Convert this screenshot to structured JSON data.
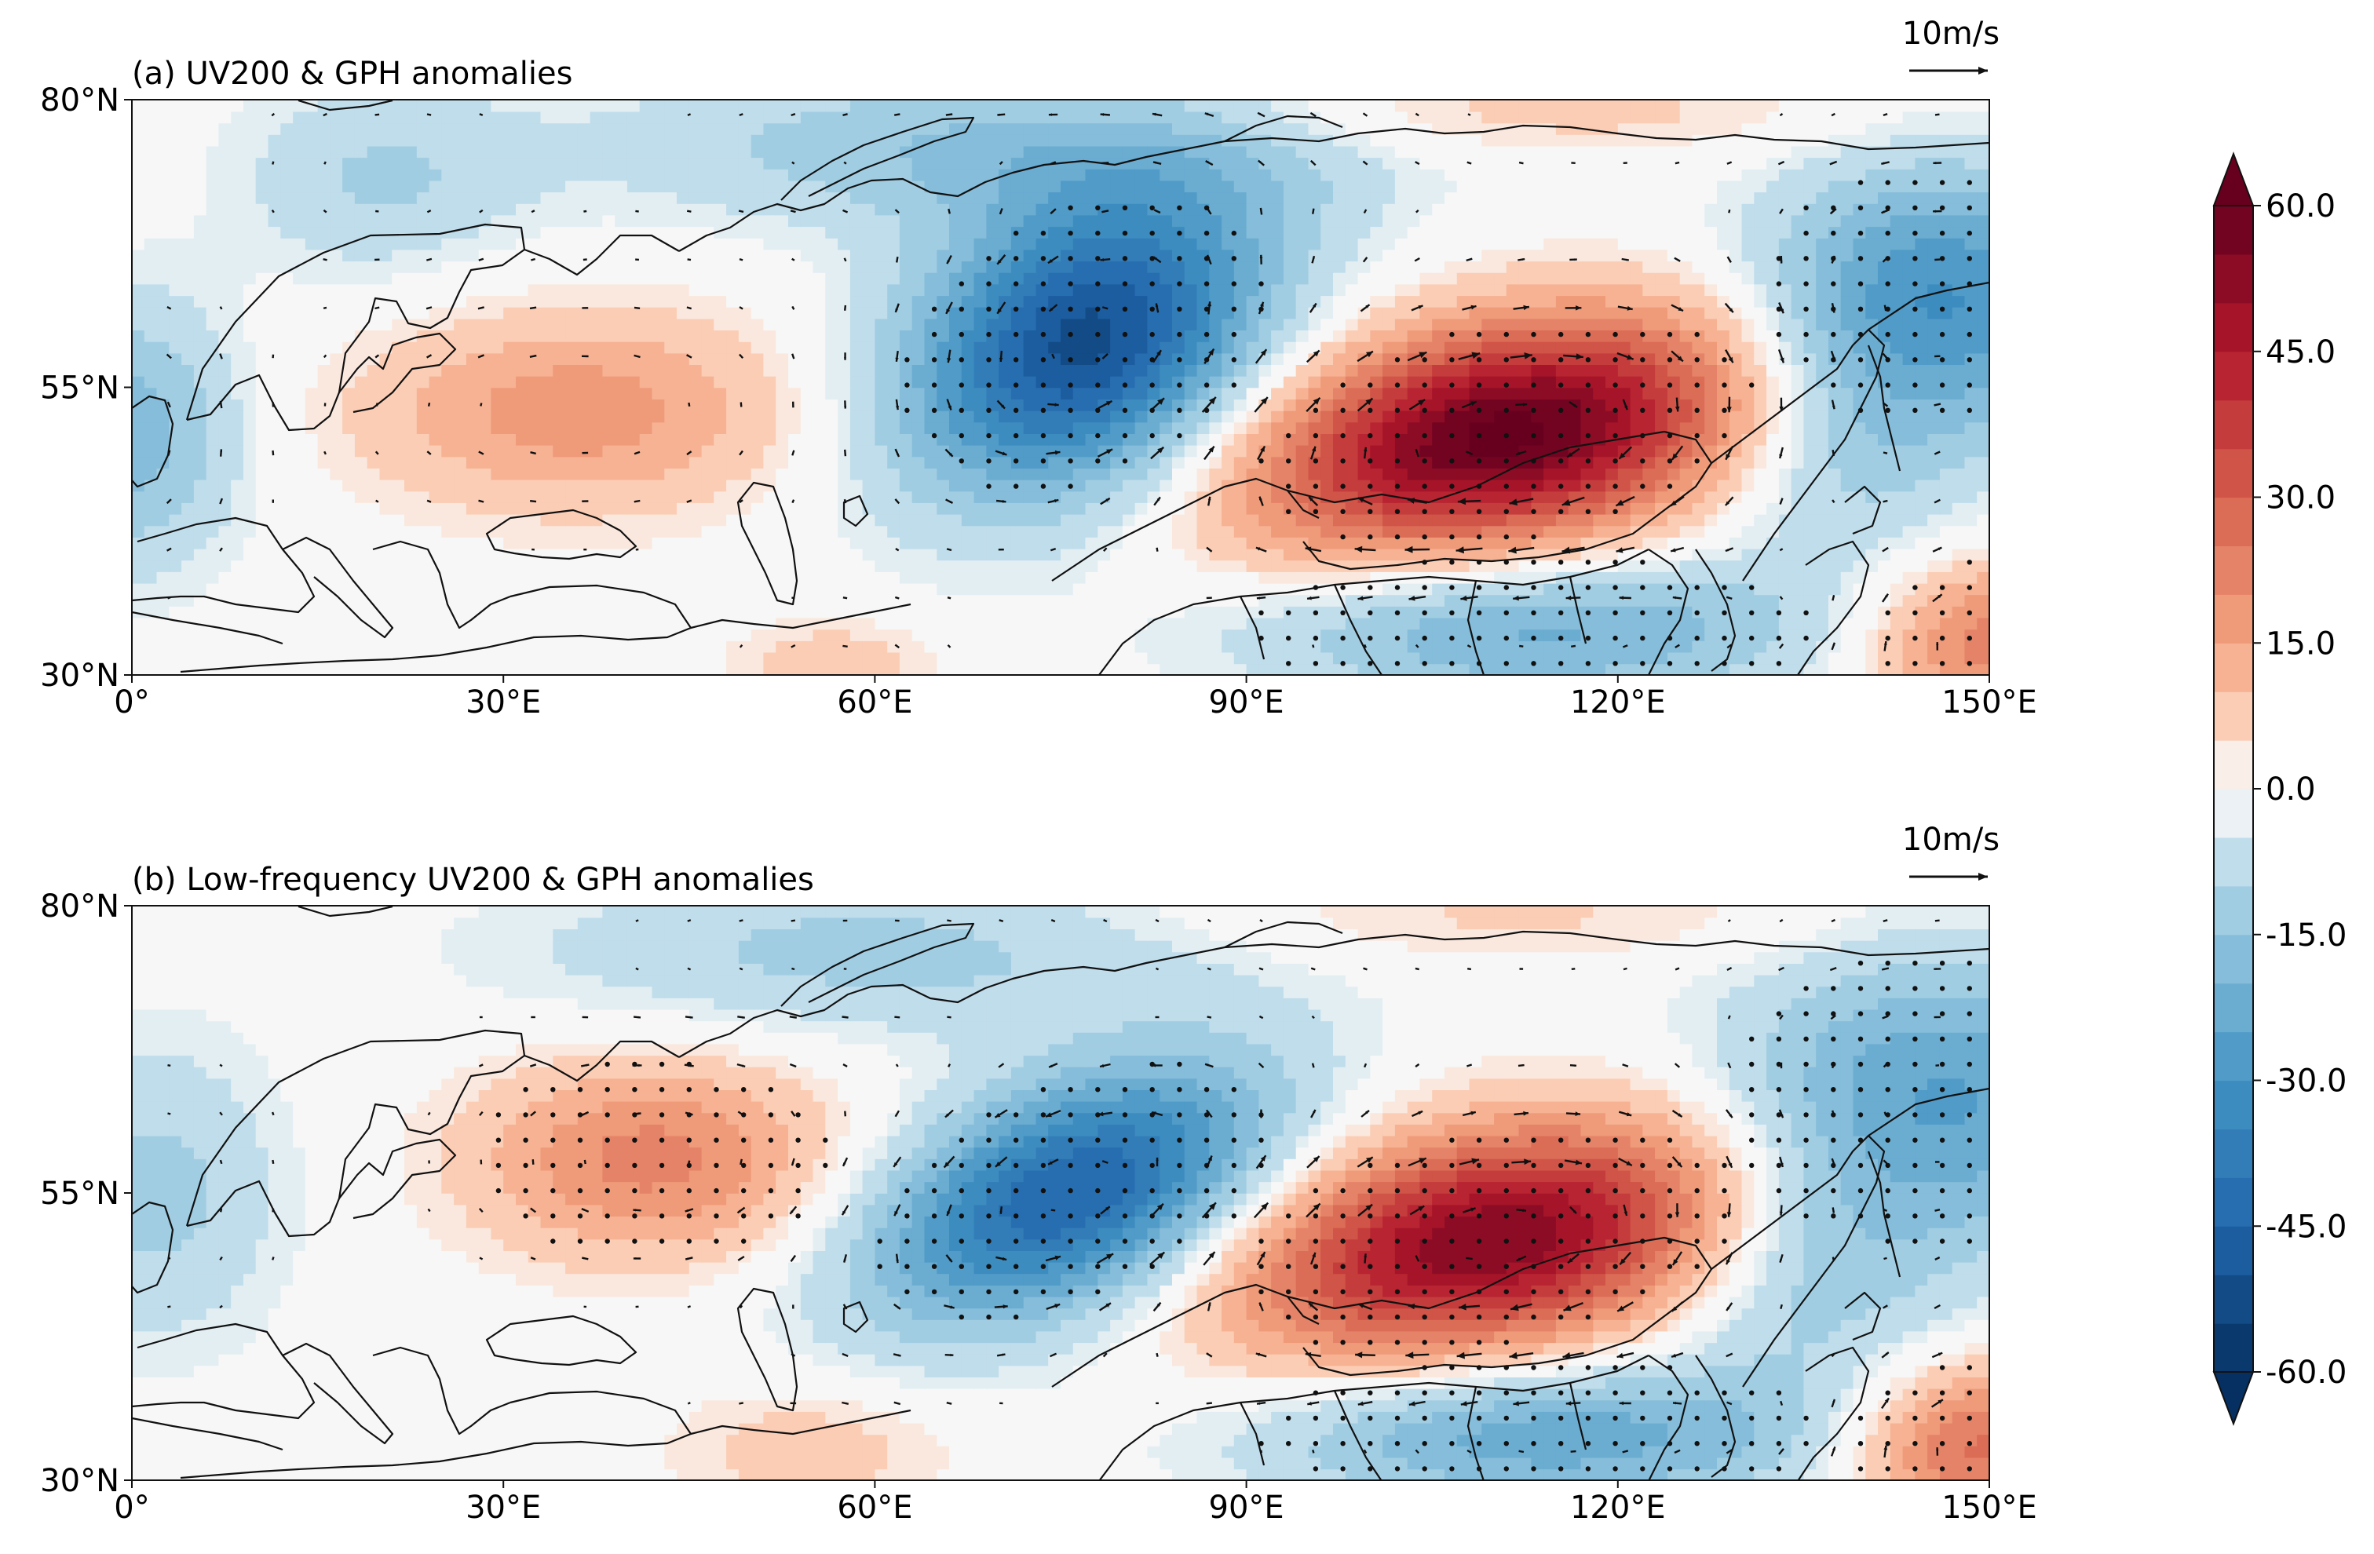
{
  "figure": {
    "colormap": "RdBu_r",
    "colorbar": {
      "min": -60,
      "max": 60,
      "step": 5,
      "extend": "both",
      "tick_values": [
        -60,
        -45,
        -30,
        -15,
        0,
        15,
        30,
        45,
        60
      ],
      "tick_labels": [
        "-60.0",
        "-45.0",
        "-30.0",
        "-15.0",
        "0.0",
        "15.0",
        "30.0",
        "45.0",
        "60.0"
      ]
    },
    "colors": {
      "dark_blue": "#08306b",
      "mid_blue": "#2166ac",
      "light_blue": "#92c5de",
      "white": "#f7f7f7",
      "light_red": "#f4a582",
      "mid_red": "#d6604d",
      "dark_red": "#67001f",
      "coast": "#111111",
      "arrow": "#111111"
    }
  },
  "chart_data": [
    {
      "type": "heatmap",
      "title": "(a) UV200 & GPH anomalies",
      "variable": "200-hPa geopotential height anomaly with wind vectors",
      "reference_vector": "10m/s",
      "reference_vector_ms": 10,
      "xlim": [
        0,
        150
      ],
      "ylim": [
        30,
        80
      ],
      "x_ticks": [
        0,
        30,
        60,
        90,
        120,
        150
      ],
      "x_tick_labels": [
        "0°",
        "30°E",
        "60°E",
        "90°E",
        "120°E",
        "150°E"
      ],
      "y_ticks": [
        30,
        55,
        80
      ],
      "y_tick_labels": [
        "30°N",
        "55°N",
        "80°N"
      ],
      "centers": [
        {
          "lon": 111,
          "lat": 51,
          "value": 62,
          "sx": 14,
          "sy": 6.5,
          "rot": 12,
          "stipple": true
        },
        {
          "lon": 77,
          "lat": 59,
          "value": -52,
          "sx": 11,
          "sy": 8,
          "rot": 35,
          "stipple": true
        },
        {
          "lon": 36,
          "lat": 53,
          "value": 18,
          "sx": 12,
          "sy": 6,
          "rot": 0,
          "stipple": false
        },
        {
          "lon": 0,
          "lat": 51,
          "value": -18,
          "sx": 6,
          "sy": 8,
          "rot": 0,
          "stipple": false
        },
        {
          "lon": 146,
          "lat": 63,
          "value": -30,
          "sx": 10,
          "sy": 8,
          "rot": 0,
          "stipple": true
        },
        {
          "lon": 150,
          "lat": 33,
          "value": 24,
          "sx": 7,
          "sy": 5,
          "rot": 0,
          "stipple": true
        },
        {
          "lon": 113,
          "lat": 34,
          "value": -22,
          "sx": 16,
          "sy": 4.5,
          "rot": 0,
          "stipple": true
        },
        {
          "lon": 70,
          "lat": 76,
          "value": -15,
          "sx": 22,
          "sy": 5,
          "rot": 0,
          "stipple": false
        },
        {
          "lon": 20,
          "lat": 73,
          "value": -10,
          "sx": 8,
          "sy": 6,
          "rot": 0,
          "stipple": false
        },
        {
          "lon": 57,
          "lat": 31,
          "value": 8,
          "sx": 6,
          "sy": 3,
          "rot": 0,
          "stipple": false
        },
        {
          "lon": 138,
          "lat": 50,
          "value": -12,
          "sx": 8,
          "sy": 8,
          "rot": 0,
          "stipple": false
        },
        {
          "lon": 110,
          "lat": 79,
          "value": 8,
          "sx": 20,
          "sy": 3,
          "rot": 0,
          "stipple": false
        }
      ]
    },
    {
      "type": "heatmap",
      "title": "(b) Low-frequency UV200 & GPH anomalies",
      "variable": "Low-frequency 200-hPa geopotential height anomaly with wind vectors",
      "reference_vector": "10m/s",
      "reference_vector_ms": 10,
      "xlim": [
        0,
        150
      ],
      "ylim": [
        30,
        80
      ],
      "x_ticks": [
        0,
        30,
        60,
        90,
        120,
        150
      ],
      "x_tick_labels": [
        "0°",
        "30°E",
        "60°E",
        "90°E",
        "120°E",
        "150°E"
      ],
      "y_ticks": [
        30,
        55,
        80
      ],
      "y_tick_labels": [
        "30°N",
        "55°N",
        "80°N"
      ],
      "centers": [
        {
          "lon": 110,
          "lat": 51,
          "value": 55,
          "sx": 14,
          "sy": 6.5,
          "rot": 12,
          "stipple": true
        },
        {
          "lon": 76,
          "lat": 55,
          "value": -46,
          "sx": 12,
          "sy": 6.5,
          "rot": 25,
          "stipple": true
        },
        {
          "lon": 42,
          "lat": 58,
          "value": 22,
          "sx": 10,
          "sy": 6,
          "rot": 0,
          "stipple": true
        },
        {
          "lon": 2,
          "lat": 55,
          "value": -12,
          "sx": 7,
          "sy": 9,
          "rot": 0,
          "stipple": false
        },
        {
          "lon": 146,
          "lat": 63,
          "value": -26,
          "sx": 12,
          "sy": 9,
          "rot": 0,
          "stipple": true
        },
        {
          "lon": 149,
          "lat": 33,
          "value": 28,
          "sx": 7,
          "sy": 5,
          "rot": 0,
          "stipple": true
        },
        {
          "lon": 114,
          "lat": 34,
          "value": -24,
          "sx": 16,
          "sy": 4.5,
          "rot": 0,
          "stipple": true
        },
        {
          "lon": 60,
          "lat": 76,
          "value": -12,
          "sx": 20,
          "sy": 5,
          "rot": 0,
          "stipple": false
        },
        {
          "lon": 55,
          "lat": 33,
          "value": 8,
          "sx": 8,
          "sy": 4,
          "rot": 0,
          "stipple": false
        },
        {
          "lon": 135,
          "lat": 48,
          "value": -12,
          "sx": 8,
          "sy": 8,
          "rot": 0,
          "stipple": false
        },
        {
          "lon": 110,
          "lat": 79,
          "value": 6,
          "sx": 20,
          "sy": 3,
          "rot": 0,
          "stipple": false
        }
      ]
    }
  ]
}
